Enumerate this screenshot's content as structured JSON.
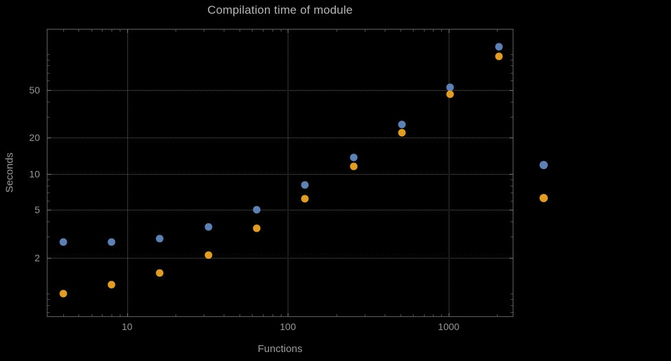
{
  "chart_data": {
    "type": "scatter",
    "title": "Compilation time of module",
    "xlabel": "Functions",
    "ylabel": "Seconds",
    "xscale": "log",
    "yscale": "log",
    "xlim": [
      3.2,
      2500
    ],
    "ylim": [
      0.65,
      160
    ],
    "grid": true,
    "x_gridlines": [
      10,
      100,
      1000
    ],
    "y_gridlines": [
      2,
      5,
      10,
      20,
      50
    ],
    "x_tick_labels": [
      "10",
      "100",
      "1000"
    ],
    "y_tick_labels": [
      "2",
      "5",
      "10",
      "20",
      "50"
    ],
    "legend_position": "right",
    "x": [
      4,
      8,
      16,
      32,
      64,
      128,
      256,
      512,
      1024,
      2048
    ],
    "series": [
      {
        "name": "blue-series",
        "color": "#5E81B5",
        "values": [
          2.7,
          2.7,
          2.9,
          3.6,
          5.0,
          8.1,
          13.8,
          26,
          53,
          115
        ]
      },
      {
        "name": "orange-series",
        "color": "#E19C24",
        "values": [
          1.0,
          1.2,
          1.5,
          2.1,
          3.5,
          6.2,
          11.5,
          22,
          46,
          95
        ]
      }
    ]
  },
  "colors": {
    "background": "#000000",
    "title_text": "#b6b6b6",
    "axis_text": "#9a9a9a",
    "grid": "#5e5e5e",
    "frame": "#5f5f5f",
    "series_blue": "#5E81B5",
    "series_orange": "#E19C24"
  }
}
